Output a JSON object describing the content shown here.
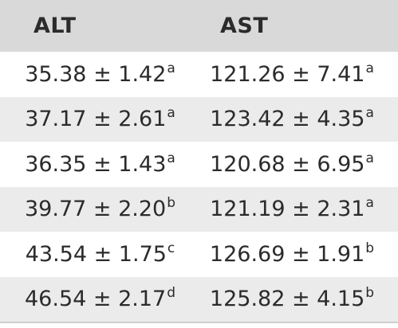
{
  "table": {
    "headers": [
      "ALT",
      "AST"
    ],
    "rows": [
      {
        "alt_value": "35.38 ± 1.42",
        "alt_sup": "a",
        "ast_value": "121.26 ± 7.41",
        "ast_sup": "a"
      },
      {
        "alt_value": "37.17 ± 2.61",
        "alt_sup": "a",
        "ast_value": "123.42 ± 4.35",
        "ast_sup": "a"
      },
      {
        "alt_value": "36.35 ± 1.43",
        "alt_sup": "a",
        "ast_value": "120.68 ± 6.95",
        "ast_sup": "a"
      },
      {
        "alt_value": "39.77 ± 2.20",
        "alt_sup": "b",
        "ast_value": "121.19 ± 2.31",
        "ast_sup": "a"
      },
      {
        "alt_value": "43.54 ± 1.75",
        "alt_sup": "c",
        "ast_value": "126.69 ± 1.91",
        "ast_sup": "b"
      },
      {
        "alt_value": "46.54 ± 2.17",
        "alt_sup": "d",
        "ast_value": "125.82 ± 4.15",
        "ast_sup": "b"
      }
    ]
  }
}
